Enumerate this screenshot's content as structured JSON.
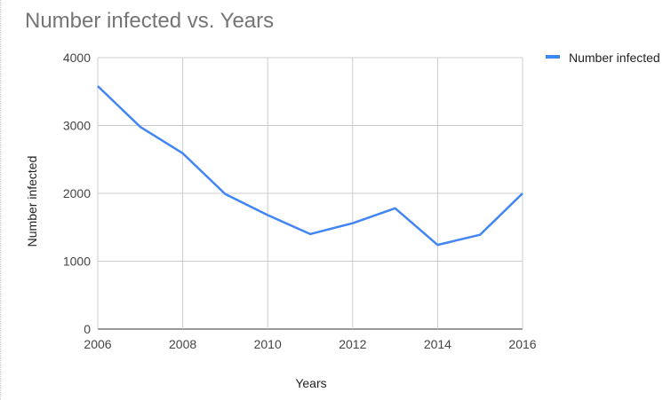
{
  "chart_data": {
    "type": "line",
    "title": "Number infected vs. Years",
    "xlabel": "Years",
    "ylabel": "Number infected",
    "x": [
      2006,
      2007,
      2008,
      2009,
      2010,
      2011,
      2012,
      2013,
      2014,
      2015,
      2016
    ],
    "xlim": [
      2006,
      2016
    ],
    "ylim": [
      0,
      4000
    ],
    "x_ticks": [
      "2006",
      "2008",
      "2010",
      "2012",
      "2014",
      "2016"
    ],
    "y_ticks": [
      "0",
      "1000",
      "2000",
      "3000",
      "4000"
    ],
    "grid": true,
    "legend_position": "top-right",
    "series": [
      {
        "name": "Number infected",
        "color": "#4285f4",
        "values": [
          3580,
          2980,
          2590,
          1990,
          1680,
          1400,
          1560,
          1780,
          1240,
          1390,
          2000
        ]
      }
    ]
  }
}
